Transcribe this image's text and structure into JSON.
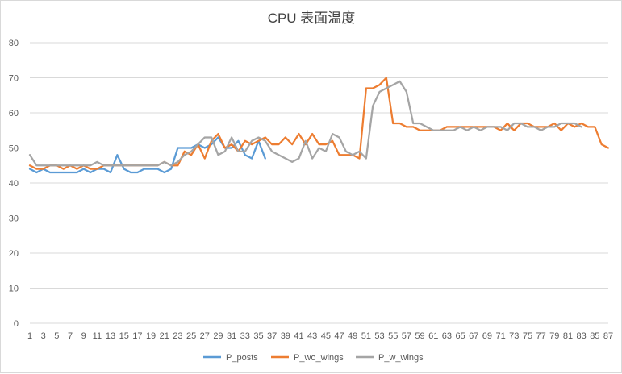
{
  "chart_data": {
    "type": "line",
    "title": "CPU 表面温度",
    "xlabel": "",
    "ylabel": "",
    "ylim": [
      0,
      80
    ],
    "yticks": [
      0,
      10,
      20,
      30,
      40,
      50,
      60,
      70,
      80
    ],
    "xticks": [
      1,
      3,
      5,
      7,
      9,
      11,
      13,
      15,
      17,
      19,
      21,
      23,
      25,
      27,
      29,
      31,
      33,
      35,
      37,
      39,
      41,
      43,
      45,
      47,
      49,
      51,
      53,
      55,
      57,
      59,
      61,
      63,
      65,
      67,
      69,
      71,
      73,
      75,
      77,
      79,
      81,
      83,
      85,
      87
    ],
    "grid": "horizontal",
    "legend_position": "bottom",
    "series": [
      {
        "name": "P_posts",
        "color": "#5b9bd5",
        "x": [
          1,
          2,
          3,
          4,
          5,
          6,
          7,
          8,
          9,
          10,
          11,
          12,
          13,
          14,
          15,
          16,
          17,
          18,
          19,
          20,
          21,
          22,
          23,
          24,
          25,
          26,
          27,
          28,
          29,
          30,
          31,
          32,
          33,
          34,
          35,
          36
        ],
        "y": [
          44,
          43,
          44,
          43,
          43,
          43,
          43,
          43,
          44,
          43,
          44,
          44,
          43,
          48,
          44,
          43,
          43,
          44,
          44,
          44,
          43,
          44,
          50,
          50,
          50,
          51,
          50,
          51,
          53,
          50,
          50,
          52,
          48,
          47,
          52,
          47
        ]
      },
      {
        "name": "P_wo_wings",
        "color": "#ed7d31",
        "x": [
          1,
          2,
          3,
          4,
          5,
          6,
          7,
          8,
          9,
          10,
          11,
          12,
          13,
          14,
          15,
          16,
          17,
          18,
          19,
          20,
          21,
          22,
          23,
          24,
          25,
          26,
          27,
          28,
          29,
          30,
          31,
          32,
          33,
          34,
          35,
          36,
          37,
          38,
          39,
          40,
          41,
          42,
          43,
          44,
          45,
          46,
          47,
          48,
          49,
          50,
          51,
          52,
          53,
          54,
          55,
          56,
          57,
          58,
          59,
          60,
          61,
          62,
          63,
          64,
          65,
          66,
          67,
          68,
          69,
          70,
          71,
          72,
          73,
          74,
          75,
          76,
          77,
          78,
          79,
          80,
          81,
          82,
          83,
          84,
          85,
          86,
          87
        ],
        "y": [
          45,
          44,
          44,
          45,
          45,
          44,
          45,
          44,
          45,
          44,
          44,
          45,
          45,
          45,
          45,
          45,
          45,
          45,
          45,
          45,
          46,
          45,
          45,
          49,
          48,
          51,
          47,
          52,
          54,
          50,
          51,
          49,
          52,
          51,
          52,
          53,
          51,
          51,
          53,
          51,
          54,
          51,
          54,
          51,
          51,
          52,
          48,
          48,
          48,
          47,
          67,
          67,
          68,
          70,
          57,
          57,
          56,
          56,
          55,
          55,
          55,
          55,
          56,
          56,
          56,
          56,
          56,
          56,
          56,
          56,
          55,
          57,
          55,
          57,
          57,
          56,
          56,
          56,
          57,
          55,
          57,
          56,
          57,
          56,
          56,
          51,
          50
        ]
      },
      {
        "name": "P_w_wings",
        "color": "#a5a5a5",
        "x": [
          1,
          2,
          3,
          4,
          5,
          6,
          7,
          8,
          9,
          10,
          11,
          12,
          13,
          14,
          15,
          16,
          17,
          18,
          19,
          20,
          21,
          22,
          23,
          24,
          25,
          26,
          27,
          28,
          29,
          30,
          31,
          32,
          33,
          34,
          35,
          36,
          37,
          38,
          39,
          40,
          41,
          42,
          43,
          44,
          45,
          46,
          47,
          48,
          49,
          50,
          51,
          52,
          53,
          54,
          55,
          56,
          57,
          58,
          59,
          60,
          61,
          62,
          63,
          64,
          65,
          66,
          67,
          68,
          69,
          70,
          71,
          72,
          73,
          74,
          75,
          76,
          77,
          78,
          79,
          80,
          81,
          82,
          83
        ],
        "y": [
          48,
          45,
          45,
          45,
          45,
          45,
          45,
          45,
          45,
          45,
          46,
          45,
          45,
          45,
          45,
          45,
          45,
          45,
          45,
          45,
          46,
          45,
          46,
          48,
          49,
          51,
          53,
          53,
          48,
          49,
          53,
          49,
          49,
          52,
          53,
          52,
          49,
          48,
          47,
          46,
          47,
          52,
          47,
          50,
          49,
          54,
          53,
          49,
          48,
          49,
          47,
          62,
          66,
          67,
          68,
          69,
          66,
          57,
          57,
          56,
          55,
          55,
          55,
          55,
          56,
          55,
          56,
          55,
          56,
          56,
          56,
          55,
          57,
          57,
          56,
          56,
          55,
          56,
          56,
          57,
          57,
          57,
          56
        ]
      }
    ]
  }
}
